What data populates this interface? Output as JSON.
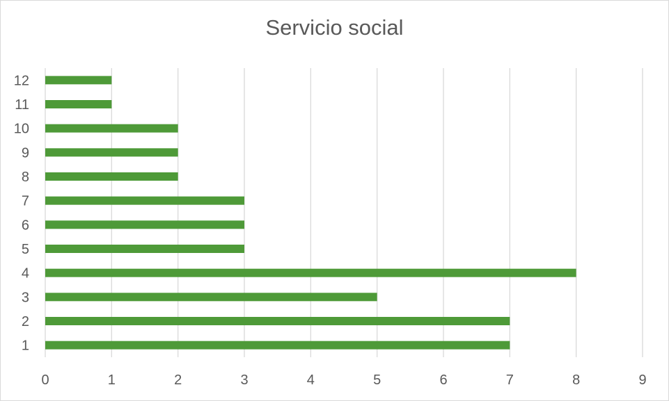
{
  "chart_data": {
    "type": "bar",
    "orientation": "horizontal",
    "title": "Servicio social",
    "categories": [
      "1",
      "2",
      "3",
      "4",
      "5",
      "6",
      "7",
      "8",
      "9",
      "10",
      "11",
      "12"
    ],
    "values": [
      7,
      7,
      5,
      8,
      3,
      3,
      3,
      2,
      2,
      2,
      1,
      1
    ],
    "xlim": [
      0,
      9
    ],
    "x_ticks": [
      "0",
      "1",
      "2",
      "3",
      "4",
      "5",
      "6",
      "7",
      "8",
      "9"
    ],
    "grid": "vertical",
    "bar_color": "#4e9a38",
    "grid_color": "#d9d9d9",
    "text_color": "#595959"
  }
}
